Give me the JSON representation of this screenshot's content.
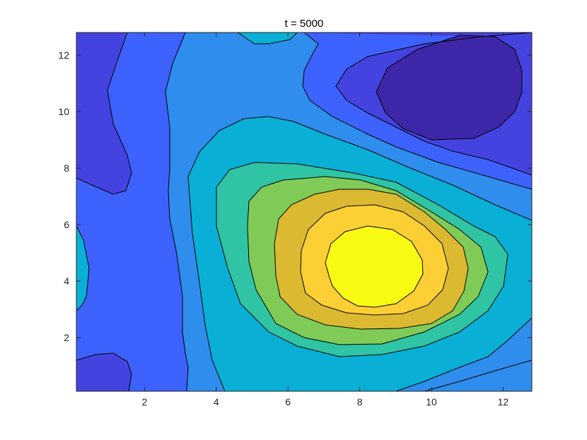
{
  "chart_data": {
    "type": "contour",
    "title": "t = 5000",
    "xlabel": "",
    "ylabel": "",
    "xlim": [
      0.1,
      12.8
    ],
    "ylim": [
      0.1,
      12.8
    ],
    "x_ticks": [
      2,
      4,
      6,
      8,
      10,
      12
    ],
    "y_ticks": [
      2,
      4,
      6,
      8,
      10,
      12
    ],
    "x_tick_labels": [
      "2",
      "4",
      "6",
      "8",
      "10",
      "12"
    ],
    "y_tick_labels": [
      "2",
      "4",
      "6",
      "8",
      "10",
      "12"
    ],
    "grid": false,
    "colormap": "parula",
    "level_colors": [
      "#3e26a8",
      "#4443e0",
      "#3d62fe",
      "#2e8ded",
      "#0aafd6",
      "#2fc4a3",
      "#80cb58",
      "#dbba32",
      "#fccf35",
      "#f9fa14"
    ],
    "features": [
      {
        "kind": "maximum",
        "x": 8.4,
        "y": 4.5,
        "level": 9
      },
      {
        "kind": "minimum",
        "x": 10.9,
        "y": 10.8,
        "level": 0
      }
    ]
  }
}
